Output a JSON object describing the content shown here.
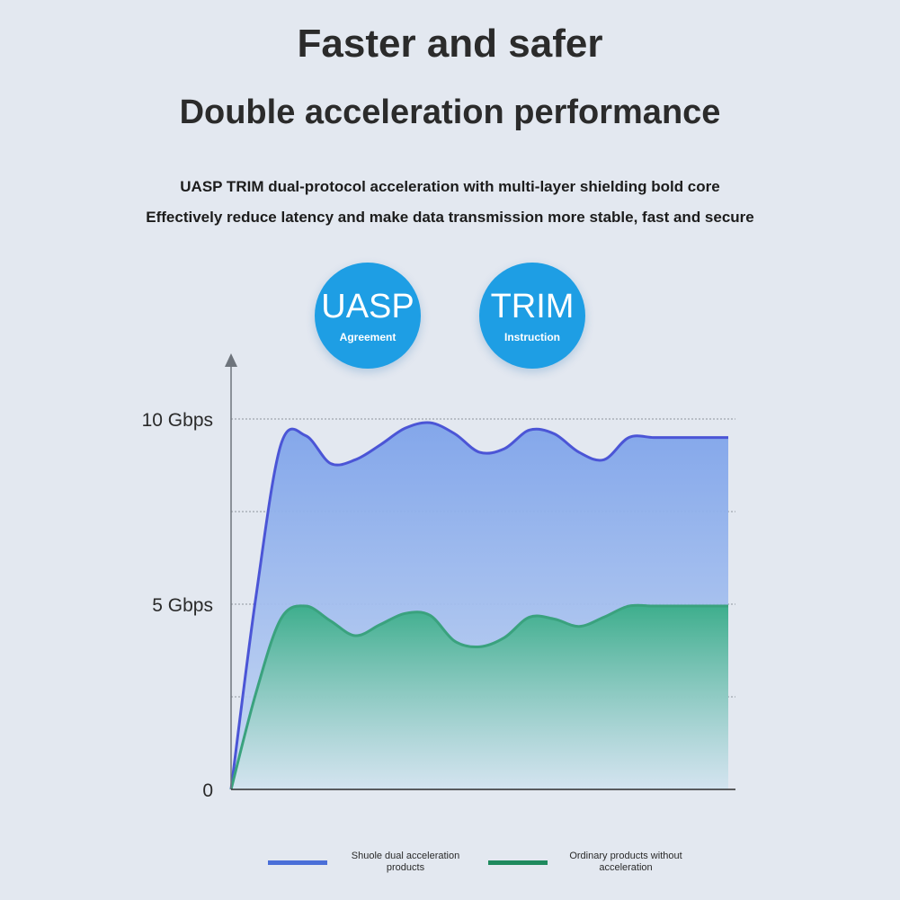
{
  "header": {
    "title": "Faster and safer",
    "subtitle": "Double acceleration performance",
    "line1": "UASP TRIM dual-protocol acceleration with multi-layer shielding bold core",
    "line2": "Effectively reduce latency and make data transmission more stable, fast and secure"
  },
  "badges": [
    {
      "big": "UASP",
      "small": "Agreement"
    },
    {
      "big": "TRIM",
      "small": "Instruction"
    }
  ],
  "colors": {
    "shuole_line": "#4b55d6",
    "shuole_fill": "#6d9ae6",
    "ordinary_line": "#3aa27e",
    "ordinary_fill": "#44b08f",
    "badge": "#1e9ee4",
    "grid": "#8d939b"
  },
  "chart_data": {
    "type": "area",
    "x": [
      0,
      0.5,
      1,
      1.5,
      2,
      2.5,
      3,
      3.5,
      4,
      4.5,
      5,
      5.5,
      6,
      6.5,
      7,
      7.5,
      8,
      8.5,
      9,
      9.5,
      10
    ],
    "ylim": [
      0,
      10
    ],
    "yticks": [
      0,
      2.5,
      5,
      7.5,
      10
    ],
    "ytick_labels": [
      "0",
      "",
      "5 Gbps",
      "",
      "10 Gbps"
    ],
    "series": [
      {
        "name": "Shuole dual acceleration products",
        "values": [
          0,
          5.2,
          9.3,
          9.55,
          8.8,
          8.9,
          9.3,
          9.75,
          9.9,
          9.6,
          9.1,
          9.2,
          9.7,
          9.6,
          9.1,
          8.9,
          9.5,
          9.5,
          9.5,
          9.5,
          9.5
        ]
      },
      {
        "name": "Ordinary products without acceleration",
        "values": [
          0,
          2.6,
          4.6,
          4.95,
          4.55,
          4.15,
          4.45,
          4.75,
          4.7,
          4.0,
          3.85,
          4.1,
          4.65,
          4.6,
          4.4,
          4.65,
          4.95,
          4.95,
          4.95,
          4.95,
          4.95
        ]
      }
    ],
    "legend": "bottom",
    "grid": true
  }
}
